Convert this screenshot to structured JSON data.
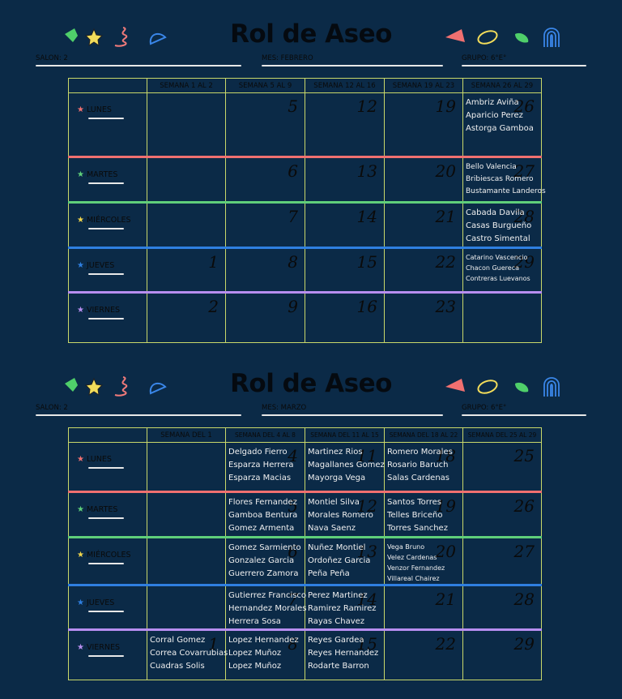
{
  "february": {
    "title": "Rol de Aseo",
    "salon": "SALON: 2",
    "mes": "MES: FEBRERO",
    "grupo": "GRUPO: 6°E°",
    "weeks": [
      "SEMANA 1 AL 2",
      "SEMANA 5 AL 9",
      "SEMANA 12 AL 16",
      "SEMANA 19 AL 23",
      "SEMANA 26 AL 29"
    ],
    "days": [
      {
        "name": "LUNES",
        "nums": [
          "",
          "5",
          "12",
          "19",
          "26"
        ],
        "names": [
          [],
          [],
          [],
          [],
          [
            "Ambriz Aviña",
            "Aparicio Perez",
            "Astorga Gamboa"
          ]
        ]
      },
      {
        "name": "MARTES",
        "nums": [
          "",
          "6",
          "13",
          "20",
          "27"
        ],
        "names": [
          [],
          [],
          [],
          [],
          [
            "Bello Valencia",
            "Bribiescas Romero",
            "Bustamante Landeros"
          ]
        ]
      },
      {
        "name": "MIÉRCOLES",
        "nums": [
          "",
          "7",
          "14",
          "21",
          "28"
        ],
        "names": [
          [],
          [],
          [],
          [],
          [
            "Cabada Davila",
            "Casas Burgueño",
            "Castro Simental"
          ]
        ]
      },
      {
        "name": "JUEVES",
        "nums": [
          "1",
          "8",
          "15",
          "22",
          "29"
        ],
        "names": [
          [],
          [],
          [],
          [],
          [
            "Catarino Vascencio",
            "Chacon Guereca",
            "Contreras Luevanos"
          ]
        ]
      },
      {
        "name": "VIERNES",
        "nums": [
          "2",
          "9",
          "16",
          "23",
          ""
        ],
        "names": [
          [],
          [],
          [],
          [],
          []
        ]
      }
    ]
  },
  "march": {
    "title": "Rol de Aseo",
    "salon": "SALON: 2",
    "mes": "MES: MARZO",
    "grupo": "GRUPO: 6°E°",
    "weeks": [
      "SEMANA DEL 1",
      "SEMANA DEL 4 AL 8",
      "SEMANA DEL 11 AL 15",
      "SEMANA DEL 18 AL 22",
      "SEMANA DEL 25 AL 29"
    ],
    "days": [
      {
        "name": "LUNES",
        "nums": [
          "",
          "4",
          "11",
          "18",
          "25"
        ],
        "names": [
          [],
          [
            "Delgado Fierro",
            "Esparza Herrera",
            "Esparza Macias"
          ],
          [
            "Martinez Rios",
            "Magallanes Gomez",
            "Mayorga Vega"
          ],
          [
            "Romero Morales",
            "Rosario Baruch",
            "Salas Cardenas"
          ],
          []
        ]
      },
      {
        "name": "MARTES",
        "nums": [
          "",
          "5",
          "12",
          "19",
          "26"
        ],
        "names": [
          [],
          [
            "Flores Fernandez",
            "Gamboa Bentura",
            "Gomez Armenta"
          ],
          [
            "Montiel Silva",
            "Morales Romero",
            "Nava Saenz"
          ],
          [
            "Santos Torres",
            "Telles Briceño",
            "Torres Sanchez"
          ],
          []
        ]
      },
      {
        "name": "MIÉRCOLES",
        "nums": [
          "",
          "6",
          "13",
          "20",
          "27"
        ],
        "names": [
          [],
          [
            "Gomez Sarmiento",
            "Gonzalez Garcia",
            "Guerrero Zamora"
          ],
          [
            "Nuñez Montiel",
            "Ordoñez Garcia",
            "Peña Peña"
          ],
          [
            "Vega Bruno",
            "Velez Cardenas",
            "Venzor Fernandez",
            "Villareal Chairez"
          ],
          []
        ]
      },
      {
        "name": "JUEVES",
        "nums": [
          "",
          "7",
          "14",
          "21",
          "28"
        ],
        "names": [
          [],
          [
            "Gutierrez Francisco",
            "Hernandez Morales",
            "Herrera Sosa"
          ],
          [
            "Perez Martinez",
            "Ramirez Ramirez",
            "Rayas Chavez"
          ],
          [],
          []
        ]
      },
      {
        "name": "VIERNES",
        "nums": [
          "1",
          "8",
          "15",
          "22",
          "29"
        ],
        "names": [
          [
            "Corral Gomez",
            "Correa Covarrubias",
            "Cuadras Solis"
          ],
          [
            "Lopez Hernandez",
            "Lopez Muñoz",
            "Lopez Muñoz"
          ],
          [
            "Reyes Gardea",
            "Reyes Hernandez",
            "Rodarte Barron"
          ],
          [],
          []
        ]
      }
    ]
  },
  "colors": {
    "background": "#0b2a47",
    "star_lunes": "#f07070",
    "star_martes": "#5fcf7a",
    "star_miercoles": "#f2d64b",
    "star_jueves": "#2f7fe0",
    "star_viernes": "#b88ef0",
    "sep_martes": "#f07070",
    "sep_miercoles": "#5fcf7a",
    "sep_jueves": "#2f7fe0",
    "sep_viernes": "#b88ef0"
  }
}
